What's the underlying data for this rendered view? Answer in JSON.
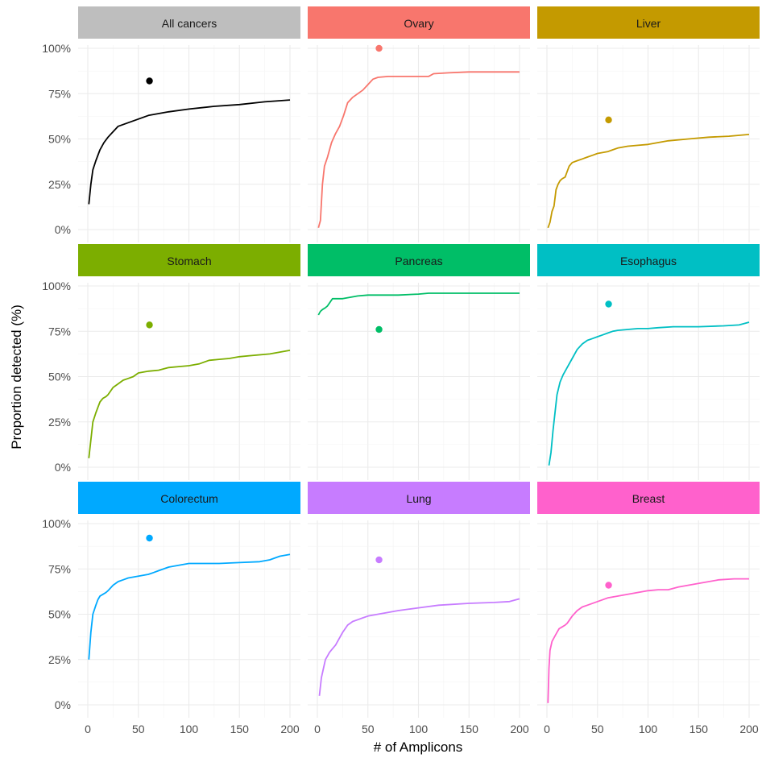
{
  "chart_data": {
    "type": "line",
    "xlabel": "# of Amplicons",
    "ylabel": "Proportion detected (%)",
    "xlim": [
      0,
      200
    ],
    "ylim": [
      0,
      100
    ],
    "xticks": [
      0,
      50,
      100,
      150,
      200
    ],
    "yticks": [
      0,
      25,
      50,
      75,
      100
    ],
    "ytick_labels": [
      "0%",
      "25%",
      "50%",
      "75%",
      "100%"
    ],
    "grid": true,
    "legend": "none",
    "facets": [
      {
        "name": "All cancers",
        "color": "#000000",
        "strip_color": "#bebebe",
        "point": {
          "x": 61,
          "y": 82
        },
        "x": [
          1,
          3,
          5,
          8,
          12,
          16,
          20,
          25,
          30,
          40,
          50,
          60,
          80,
          100,
          125,
          150,
          175,
          200
        ],
        "y": [
          14,
          25,
          33,
          38,
          44,
          48,
          51,
          54,
          57,
          59,
          61,
          63,
          65,
          66.5,
          68,
          69,
          70.5,
          71.5
        ]
      },
      {
        "name": "Ovary",
        "color": "#f8766d",
        "strip_color": "#f8766d",
        "point": {
          "x": 61,
          "y": 100
        },
        "x": [
          1,
          3,
          5,
          7,
          10,
          14,
          18,
          22,
          26,
          30,
          35,
          40,
          45,
          50,
          55,
          60,
          70,
          80,
          100,
          110,
          115,
          130,
          150,
          175,
          200
        ],
        "y": [
          1,
          5,
          25,
          35,
          40,
          48,
          53,
          57,
          63,
          70,
          73,
          75,
          77,
          80,
          83,
          84,
          84.5,
          84.5,
          84.5,
          84.5,
          86,
          86.5,
          87,
          87,
          87
        ]
      },
      {
        "name": "Liver",
        "color": "#c49a00",
        "strip_color": "#c49a00",
        "point": {
          "x": 61,
          "y": 60.5
        },
        "x": [
          1,
          3,
          5,
          7,
          9,
          11,
          13,
          15,
          18,
          20,
          22,
          25,
          30,
          35,
          40,
          45,
          50,
          60,
          65,
          70,
          80,
          90,
          100,
          110,
          120,
          140,
          160,
          180,
          200
        ],
        "y": [
          1,
          4,
          10,
          13,
          22,
          25,
          27,
          28,
          29,
          32,
          35,
          37,
          38,
          39,
          40,
          41,
          42,
          43,
          44,
          45,
          46,
          46.5,
          47,
          48,
          49,
          50,
          51,
          51.5,
          52.5
        ]
      },
      {
        "name": "Stomach",
        "color": "#7cae00",
        "strip_color": "#7cae00",
        "point": {
          "x": 61,
          "y": 78.5
        },
        "x": [
          1,
          3,
          5,
          8,
          10,
          12,
          15,
          18,
          20,
          25,
          30,
          35,
          40,
          45,
          50,
          55,
          60,
          70,
          80,
          90,
          100,
          110,
          120,
          130,
          140,
          150,
          160,
          170,
          180,
          190,
          200
        ],
        "y": [
          5,
          15,
          25,
          30,
          33,
          36,
          38,
          39,
          40,
          44,
          46,
          48,
          49,
          50,
          52,
          52.5,
          53,
          53.5,
          55,
          55.5,
          56,
          57,
          59,
          59.5,
          60,
          61,
          61.5,
          62,
          62.5,
          63.5,
          64.5
        ]
      },
      {
        "name": "Pancreas",
        "color": "#00be67",
        "strip_color": "#00be67",
        "point": {
          "x": 61,
          "y": 76
        },
        "x": [
          1,
          3,
          5,
          8,
          10,
          15,
          20,
          25,
          30,
          40,
          50,
          60,
          80,
          100,
          110,
          125,
          150,
          175,
          200
        ],
        "y": [
          84,
          86,
          87,
          88,
          89,
          93,
          93,
          93,
          93.5,
          94.5,
          95,
          95,
          95,
          95.5,
          96,
          96,
          96,
          96,
          96
        ]
      },
      {
        "name": "Esophagus",
        "color": "#00bfc4",
        "strip_color": "#00bfc4",
        "point": {
          "x": 61,
          "y": 90
        },
        "x": [
          2,
          4,
          6,
          8,
          10,
          13,
          16,
          20,
          25,
          30,
          35,
          40,
          45,
          50,
          55,
          60,
          65,
          70,
          80,
          90,
          100,
          110,
          125,
          150,
          175,
          190,
          200
        ],
        "y": [
          1,
          8,
          20,
          30,
          40,
          47,
          51,
          55,
          60,
          65,
          68,
          70,
          71,
          72,
          73,
          74,
          75,
          75.5,
          76,
          76.5,
          76.5,
          77,
          77.5,
          77.5,
          78,
          78.5,
          80
        ]
      },
      {
        "name": "Colorectum",
        "color": "#00a9ff",
        "strip_color": "#00a9ff",
        "point": {
          "x": 61,
          "y": 92
        },
        "x": [
          1,
          3,
          5,
          8,
          10,
          12,
          15,
          18,
          20,
          25,
          30,
          35,
          40,
          50,
          60,
          65,
          70,
          80,
          90,
          100,
          110,
          130,
          150,
          170,
          180,
          190,
          200
        ],
        "y": [
          25,
          40,
          50,
          55,
          58,
          60,
          61,
          62,
          63,
          66,
          68,
          69,
          70,
          71,
          72,
          73,
          74,
          76,
          77,
          78,
          78,
          78,
          78.5,
          79,
          80,
          82,
          83
        ]
      },
      {
        "name": "Lung",
        "color": "#c77cff",
        "strip_color": "#c77cff",
        "point": {
          "x": 61,
          "y": 80
        },
        "x": [
          2,
          4,
          6,
          8,
          10,
          12,
          15,
          18,
          20,
          25,
          30,
          35,
          40,
          45,
          50,
          60,
          70,
          80,
          100,
          120,
          150,
          175,
          190,
          200
        ],
        "y": [
          5,
          15,
          20,
          25,
          27,
          29,
          31,
          33,
          35,
          40,
          44,
          46,
          47,
          48,
          49,
          50,
          51,
          52,
          53.5,
          55,
          56,
          56.5,
          57,
          58.5
        ]
      },
      {
        "name": "Breast",
        "color": "#ff61cc",
        "strip_color": "#ff61cc",
        "point": {
          "x": 61,
          "y": 66
        },
        "x": [
          1,
          2,
          3,
          5,
          8,
          10,
          12,
          15,
          18,
          20,
          25,
          30,
          35,
          40,
          50,
          60,
          70,
          80,
          90,
          100,
          110,
          120,
          130,
          150,
          170,
          185,
          200
        ],
        "y": [
          1,
          20,
          30,
          35,
          38,
          40,
          42,
          43,
          44,
          45,
          49,
          52,
          54,
          55,
          57,
          59,
          60,
          61,
          62,
          63,
          63.5,
          63.5,
          65,
          67,
          69,
          69.5,
          69.5
        ]
      }
    ]
  }
}
